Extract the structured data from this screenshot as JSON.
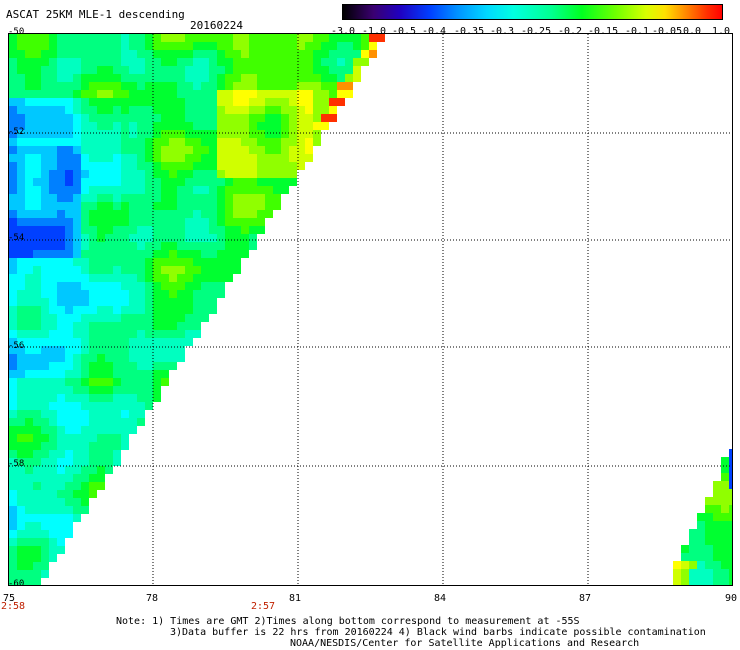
{
  "header": {
    "title": "ASCAT 25KM MLE-1 descending",
    "date": "20160224"
  },
  "colorbar": {
    "labels": [
      "-3.0",
      "-1.0",
      "-0.5",
      "-0.4",
      "-0.35",
      "-0.3",
      "-0.25",
      "-0.2",
      "-0.15",
      "-0.1",
      "-0.05",
      "0.0",
      "1.0"
    ]
  },
  "axes": {
    "y_labels": [
      "-50",
      "-52",
      "-54",
      "-56",
      "-58",
      "-60"
    ],
    "x_labels": [
      "75",
      "78",
      "81",
      "84",
      "87",
      "90"
    ],
    "time_labels": [
      "2:58",
      "2:57"
    ]
  },
  "notes": [
    "Note: 1) Times are GMT 2)Times along bottom correspond to measurement at -55S",
    "3)Data buffer is 22 hrs from 20160224 4) Black wind barbs indicate possible contamination",
    "NOAA/NESDIS/Center for Satellite Applications and Research"
  ],
  "colors": {
    "grid": "#000000",
    "background": "#ffffff",
    "time_label": "#c02000"
  }
}
